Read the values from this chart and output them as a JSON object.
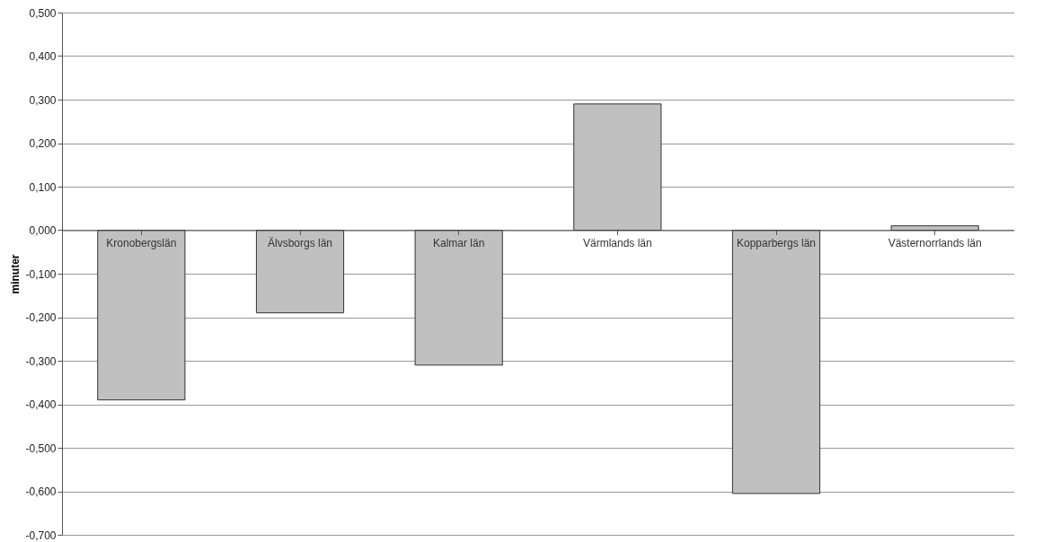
{
  "chart_data": {
    "type": "bar",
    "ylabel": "minuter",
    "categories": [
      "Kronobergslän",
      "Älvsborgs län",
      "Kalmar län",
      "Värmlands län",
      "Kopparbergs län",
      "Västernorrlands län"
    ],
    "values": [
      -0.39,
      -0.19,
      -0.31,
      0.29,
      -0.605,
      0.01
    ],
    "color": "#c0c0c0",
    "ylim": [
      -0.7,
      0.5
    ],
    "yticks": [
      {
        "value": -0.7,
        "label": "-0,700"
      },
      {
        "value": -0.6,
        "label": "-0,600"
      },
      {
        "value": -0.5,
        "label": "-0,500"
      },
      {
        "value": -0.4,
        "label": "-0,400"
      },
      {
        "value": -0.3,
        "label": "-0,300"
      },
      {
        "value": -0.2,
        "label": "-0,200"
      },
      {
        "value": -0.1,
        "label": "-0,100"
      },
      {
        "value": 0,
        "label": "0,000"
      },
      {
        "value": 0.1,
        "label": "0,100"
      },
      {
        "value": 0.2,
        "label": "0,200"
      },
      {
        "value": 0.3,
        "label": "0,300"
      },
      {
        "value": 0.4,
        "label": "0,400"
      },
      {
        "value": 0.5,
        "label": "0,500"
      }
    ],
    "grid": "y"
  }
}
